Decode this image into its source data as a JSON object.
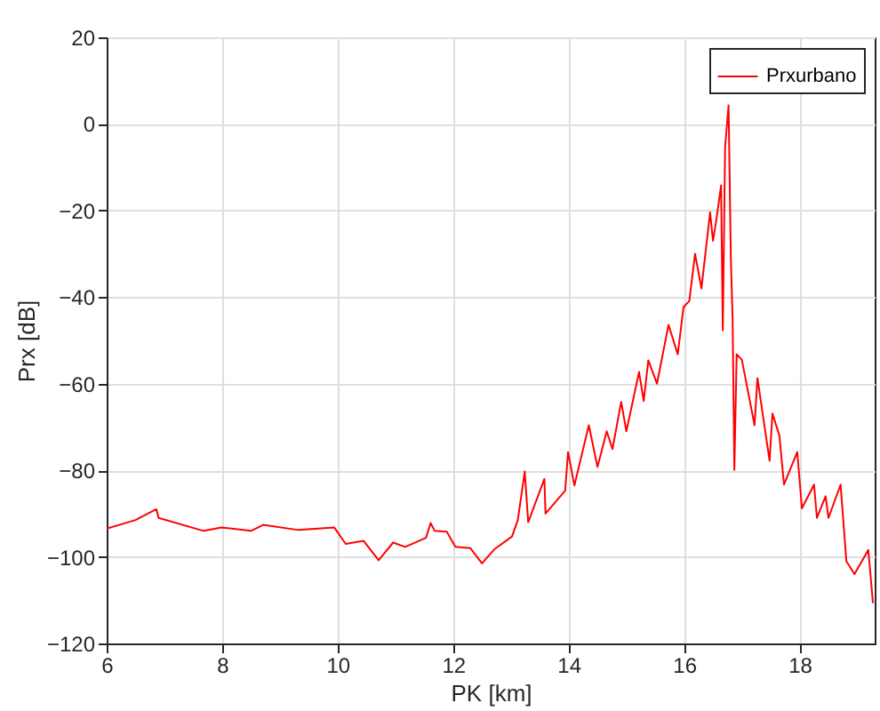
{
  "chart_data": {
    "type": "line",
    "xlabel": "PK [km]",
    "ylabel": "Prx [dB]",
    "xlim": [
      6,
      19.3
    ],
    "xticks": [
      6,
      8,
      10,
      12,
      14,
      16,
      18
    ],
    "ylim": [
      -120,
      20
    ],
    "yticks": [
      -120,
      -100,
      -80,
      -60,
      -40,
      -20,
      0,
      20
    ],
    "grid": true,
    "legend": "top right",
    "series": [
      {
        "name": "Prxurbano",
        "color": "#ff0000",
        "x": [
          6.0,
          6.5,
          6.86,
          6.9,
          7.68,
          7.99,
          8.5,
          8.71,
          9.32,
          9.94,
          10.14,
          10.45,
          10.71,
          10.96,
          11.17,
          11.53,
          11.61,
          11.68,
          11.89,
          12.04,
          12.3,
          12.5,
          12.71,
          13.02,
          13.12,
          13.24,
          13.3,
          13.58,
          13.6,
          13.94,
          13.99,
          14.1,
          14.35,
          14.5,
          14.66,
          14.76,
          14.91,
          15.0,
          15.22,
          15.3,
          15.38,
          15.53,
          15.73,
          15.89,
          15.99,
          16.09,
          16.19,
          16.3,
          16.45,
          16.5,
          16.56,
          16.64,
          16.67,
          16.71,
          16.77,
          16.81,
          16.84,
          16.87,
          16.91,
          17.0,
          17.22,
          17.27,
          17.48,
          17.53,
          17.65,
          17.73,
          17.96,
          18.04,
          18.25,
          18.3,
          18.45,
          18.5,
          18.71,
          18.81,
          18.95,
          19.19,
          19.27
        ],
        "values": [
          -93.5,
          -91.5,
          -89,
          -91,
          -94,
          -93.2,
          -94,
          -92.6,
          -93.8,
          -93.2,
          -97,
          -96.3,
          -100.8,
          -96.7,
          -97.7,
          -95.6,
          -92.2,
          -94,
          -94.2,
          -97.7,
          -98,
          -101.5,
          -98.3,
          -95.3,
          -91.5,
          -80.3,
          -92,
          -82,
          -90,
          -84.7,
          -75.8,
          -83.5,
          -69.6,
          -79.2,
          -71,
          -75.1,
          -64.2,
          -71,
          -57.3,
          -64,
          -54.6,
          -60,
          -46.4,
          -53.2,
          -42.3,
          -40.9,
          -30,
          -38,
          -20.4,
          -27,
          -22,
          -14.2,
          -47.7,
          -5.3,
          4.3,
          -31.3,
          -45,
          -79.9,
          -53.2,
          -54.5,
          -69.6,
          -58.7,
          -77.8,
          -66.9,
          -72,
          -83.3,
          -75.8,
          -88.8,
          -83.3,
          -91,
          -86,
          -91,
          -83.3,
          -101,
          -104,
          -98.4,
          -110.7
        ]
      }
    ]
  }
}
